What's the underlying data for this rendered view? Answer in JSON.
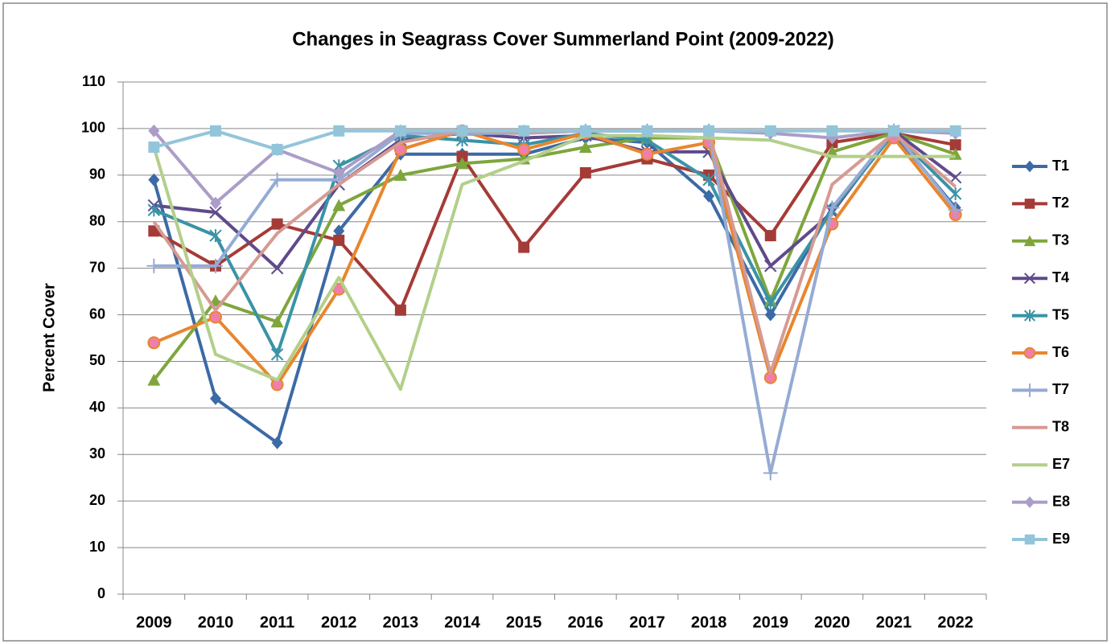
{
  "chart_data": {
    "type": "line",
    "title": "Changes in Seagrass Cover Summerland Point (2009-2022)",
    "y_label": "Percent Cover",
    "categories": [
      "2009",
      "2010",
      "2011",
      "2012",
      "2013",
      "2014",
      "2015",
      "2016",
      "2017",
      "2018",
      "2019",
      "2020",
      "2021",
      "2022"
    ],
    "ylim": [
      0,
      110
    ],
    "yticks": [
      0,
      10,
      20,
      30,
      40,
      50,
      60,
      70,
      80,
      90,
      100,
      110
    ],
    "grid": true,
    "legend": "right",
    "series": [
      {
        "name": "T1",
        "color": "#3c6aa6",
        "marker": "diamond",
        "values": [
          89,
          42,
          32.5,
          78,
          94.5,
          94.5,
          94.5,
          98,
          97,
          85.5,
          60,
          83,
          99,
          83
        ]
      },
      {
        "name": "T2",
        "color": "#a53b37",
        "marker": "square",
        "values": [
          78,
          70.5,
          79.5,
          76,
          61,
          94,
          74.5,
          90.5,
          93.5,
          90,
          77,
          97,
          99,
          96.5
        ]
      },
      {
        "name": "T3",
        "color": "#7ea63d",
        "marker": "triangle",
        "values": [
          46,
          63,
          58.5,
          83.5,
          90,
          92.5,
          93.5,
          96,
          98,
          98,
          63,
          95,
          99,
          94.5
        ]
      },
      {
        "name": "T4",
        "color": "#5f4a8b",
        "marker": "x",
        "values": [
          83.5,
          82,
          70,
          88,
          97.5,
          99,
          98,
          98.5,
          95,
          95,
          70.5,
          82,
          99.5,
          89.5
        ]
      },
      {
        "name": "T5",
        "color": "#3a93a6",
        "marker": "asterisk",
        "values": [
          82.5,
          77,
          51.5,
          92,
          98.5,
          97.5,
          96.5,
          99,
          97.5,
          89,
          62.5,
          82.5,
          99,
          86
        ]
      },
      {
        "name": "T6",
        "color": "#e8862e",
        "marker": "circle",
        "marker_color": "#ef7fa8",
        "values": [
          54,
          59.5,
          45,
          65.5,
          95.5,
          99.5,
          95.5,
          99,
          94.5,
          97,
          46.5,
          79.5,
          98,
          81.5
        ]
      },
      {
        "name": "T7",
        "color": "#95abd4",
        "marker": "plus",
        "values": [
          70.5,
          70.5,
          89,
          89,
          99,
          99,
          99,
          99.5,
          99.5,
          99.5,
          26,
          83,
          99.5,
          82.5
        ]
      },
      {
        "name": "T8",
        "color": "#d69a93",
        "marker": "none",
        "values": [
          80,
          61,
          77.5,
          88,
          97,
          99.5,
          99,
          99.5,
          99.5,
          99.5,
          47.5,
          88,
          99,
          87.5
        ]
      },
      {
        "name": "E7",
        "color": "#b3cf8a",
        "marker": "none",
        "values": [
          96,
          51.5,
          46,
          68,
          44,
          88,
          93,
          98.5,
          98.5,
          98,
          97.5,
          94,
          94,
          94
        ]
      },
      {
        "name": "E8",
        "color": "#ab9dc7",
        "marker": "diamond",
        "values": [
          99.5,
          84,
          95.5,
          90.5,
          99.5,
          99.5,
          99.5,
          99.5,
          99.5,
          99.5,
          99,
          98,
          99.5,
          99
        ]
      },
      {
        "name": "E9",
        "color": "#93c5da",
        "marker": "square",
        "values": [
          96,
          99.5,
          95.5,
          99.5,
          99.5,
          99.5,
          99.5,
          99.5,
          99.5,
          99.5,
          99.5,
          99.5,
          99.5,
          99.5
        ]
      }
    ]
  }
}
